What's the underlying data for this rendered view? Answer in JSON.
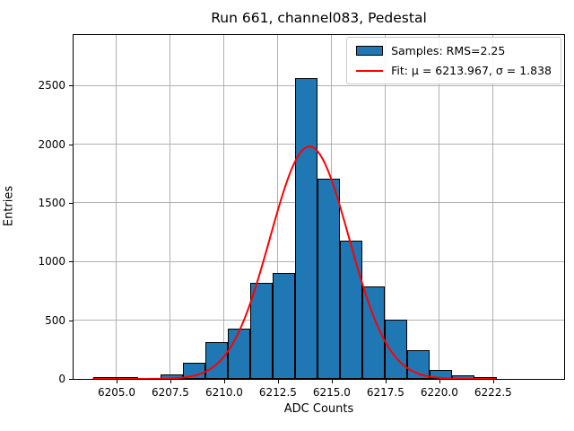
{
  "title": "Run 661, channel083, Pedestal",
  "chart_data": {
    "type": "bar",
    "subtype": "histogram-with-gaussian-fit",
    "title": "Run 661, channel083, Pedestal",
    "xlabel": "ADC Counts",
    "ylabel": "Entries",
    "xlim": [
      6203.0,
      6225.8
    ],
    "ylim": [
      0,
      2930
    ],
    "grid": true,
    "grid_color": "#b0b0b0",
    "legend_position": "upper right",
    "x_ticks": {
      "values": [
        6205.0,
        6207.5,
        6210.0,
        6212.5,
        6215.0,
        6217.5,
        6220.0,
        6222.5
      ],
      "labels": [
        "6205.0",
        "6207.5",
        "6210.0",
        "6212.5",
        "6215.0",
        "6217.5",
        "6220.0",
        "6222.5"
      ]
    },
    "y_ticks": {
      "values": [
        0,
        500,
        1000,
        1500,
        2000,
        2500
      ],
      "labels": [
        "0",
        "500",
        "1000",
        "1500",
        "2000",
        "2500"
      ]
    },
    "histogram": {
      "label": "Samples: RMS=2.25",
      "fill_color": "#1f77b4",
      "edge_color": "#000000",
      "bin_edges": [
        6203.92,
        6204.96,
        6206.0,
        6207.04,
        6208.09,
        6209.13,
        6210.17,
        6211.21,
        6212.25,
        6213.3,
        6214.34,
        6215.38,
        6216.42,
        6217.46,
        6218.51,
        6219.55,
        6220.59,
        6221.63,
        6222.67
      ],
      "counts": [
        10,
        10,
        0,
        40,
        140,
        315,
        425,
        820,
        905,
        2560,
        1710,
        1180,
        790,
        505,
        242,
        75,
        30,
        5
      ]
    },
    "fit": {
      "label": "Fit: μ = 6213.967, σ = 1.838",
      "mu": 6213.967,
      "sigma": 1.838,
      "peak": 1980,
      "x_range": [
        6203.92,
        6222.67
      ],
      "color": "#ff0000"
    }
  }
}
